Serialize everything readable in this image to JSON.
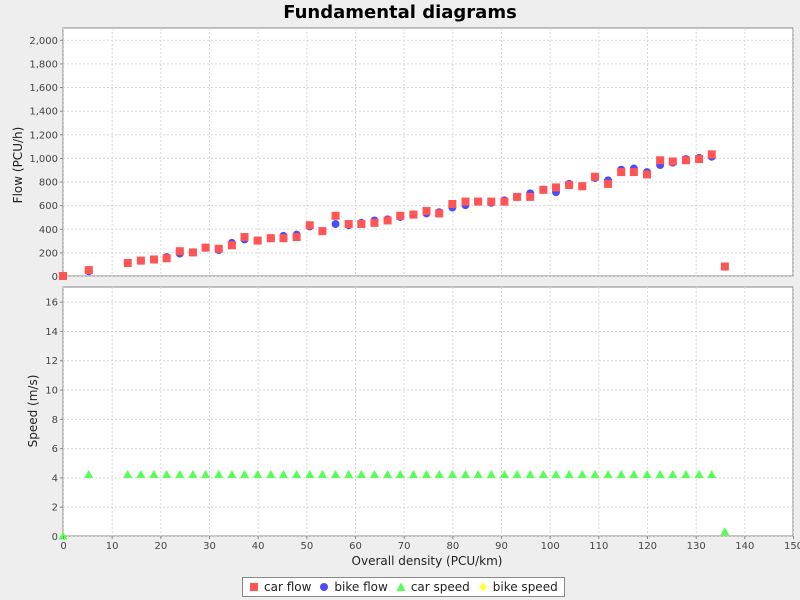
{
  "chart_data": {
    "type": "scatter",
    "title": "Fundamental diagrams",
    "xlabel": "Overall density (PCU/km)",
    "xlim": [
      0,
      150
    ],
    "x_ticks": [
      0,
      10,
      20,
      30,
      40,
      50,
      60,
      70,
      80,
      90,
      100,
      110,
      120,
      130,
      140,
      150
    ],
    "grid": true,
    "legend_position": "bottom",
    "panels": [
      {
        "ylabel": "Flow (PCU/h)",
        "ylim": [
          0,
          2100
        ],
        "y_ticks": [
          0,
          200,
          400,
          600,
          800,
          1000,
          1200,
          1400,
          1600,
          1800,
          2000
        ],
        "y_tick_labels": [
          "0",
          "200",
          "400",
          "600",
          "800",
          "1,000",
          "1,200",
          "1,400",
          "1,600",
          "1,800",
          "2,000"
        ],
        "series": [
          {
            "name": "bike flow",
            "color": "#4d4dff",
            "marker": "circle",
            "x": [
              0,
              5.3,
              13.3,
              16,
              18.7,
              21.3,
              24,
              26.7,
              29.3,
              32,
              34.7,
              37.3,
              40,
              42.7,
              45.3,
              48,
              50.7,
              53.3,
              56,
              58.7,
              61.3,
              64,
              66.7,
              69.3,
              72,
              74.7,
              77.3,
              80,
              82.7,
              85.3,
              88,
              90.7,
              93.3,
              96,
              98.7,
              101.3,
              104,
              106.7,
              109.3,
              112,
              114.7,
              117.3,
              120,
              122.7,
              125.3,
              128,
              130.7,
              133.3
            ],
            "y": [
              0,
              40,
              110,
              130,
              140,
              160,
              190,
              200,
              240,
              220,
              280,
              310,
              300,
              320,
              340,
              350,
              420,
              380,
              440,
              430,
              450,
              470,
              480,
              500,
              520,
              530,
              540,
              580,
              600,
              630,
              620,
              640,
              670,
              700,
              730,
              710,
              780,
              760,
              830,
              810,
              900,
              910,
              880,
              940,
              960,
              990,
              1000,
              1010
            ]
          },
          {
            "name": "car flow",
            "color": "#ff5555",
            "marker": "square",
            "x": [
              0,
              5.3,
              13.3,
              16,
              18.7,
              21.3,
              24,
              26.7,
              29.3,
              32,
              34.7,
              37.3,
              40,
              42.7,
              45.3,
              48,
              50.7,
              53.3,
              56,
              58.7,
              61.3,
              64,
              66.7,
              69.3,
              72,
              74.7,
              77.3,
              80,
              82.7,
              85.3,
              88,
              90.7,
              93.3,
              96,
              98.7,
              101.3,
              104,
              106.7,
              109.3,
              112,
              114.7,
              117.3,
              120,
              122.7,
              125.3,
              128,
              130.7,
              133.3,
              136
            ],
            "y": [
              0,
              50,
              110,
              130,
              140,
              150,
              210,
              200,
              240,
              230,
              260,
              330,
              300,
              320,
              320,
              330,
              430,
              380,
              510,
              440,
              440,
              450,
              470,
              510,
              520,
              550,
              530,
              610,
              630,
              630,
              630,
              630,
              670,
              670,
              730,
              750,
              770,
              760,
              840,
              780,
              880,
              880,
              860,
              980,
              970,
              980,
              990,
              1030,
              80
            ]
          }
        ]
      },
      {
        "ylabel": "Speed (m/s)",
        "ylim": [
          0,
          17
        ],
        "y_ticks": [
          0,
          2,
          4,
          6,
          8,
          10,
          12,
          14,
          16
        ],
        "y_tick_labels": [
          "0",
          "2",
          "4",
          "6",
          "8",
          "10",
          "12",
          "14",
          "16"
        ],
        "series": [
          {
            "name": "car speed",
            "color": "#55ff55",
            "marker": "triangle",
            "x": [
              0,
              5.3,
              13.3,
              16,
              18.7,
              21.3,
              24,
              26.7,
              29.3,
              32,
              34.7,
              37.3,
              40,
              42.7,
              45.3,
              48,
              50.7,
              53.3,
              56,
              58.7,
              61.3,
              64,
              66.7,
              69.3,
              72,
              74.7,
              77.3,
              80,
              82.7,
              85.3,
              88,
              90.7,
              93.3,
              96,
              98.7,
              101.3,
              104,
              106.7,
              109.3,
              112,
              114.7,
              117.3,
              120,
              122.7,
              125.3,
              128,
              130.7,
              133.3,
              136
            ],
            "y": [
              0,
              4.2,
              4.2,
              4.2,
              4.2,
              4.2,
              4.2,
              4.2,
              4.2,
              4.2,
              4.2,
              4.2,
              4.2,
              4.2,
              4.2,
              4.2,
              4.2,
              4.2,
              4.2,
              4.2,
              4.2,
              4.2,
              4.2,
              4.2,
              4.2,
              4.2,
              4.2,
              4.2,
              4.2,
              4.2,
              4.2,
              4.2,
              4.2,
              4.2,
              4.2,
              4.2,
              4.2,
              4.2,
              4.2,
              4.2,
              4.2,
              4.2,
              4.2,
              4.2,
              4.2,
              4.2,
              4.2,
              4.2,
              0.3
            ]
          },
          {
            "name": "bike speed",
            "color": "#ffff55",
            "marker": "diamond",
            "x": [],
            "y": []
          }
        ]
      }
    ]
  },
  "legend": {
    "items": [
      {
        "label": "car flow",
        "color": "#ff5555",
        "marker": "square"
      },
      {
        "label": "bike flow",
        "color": "#4d4dff",
        "marker": "circle"
      },
      {
        "label": "car speed",
        "color": "#55ff55",
        "marker": "triangle"
      },
      {
        "label": "bike speed",
        "color": "#ffff55",
        "marker": "diamond"
      }
    ]
  }
}
